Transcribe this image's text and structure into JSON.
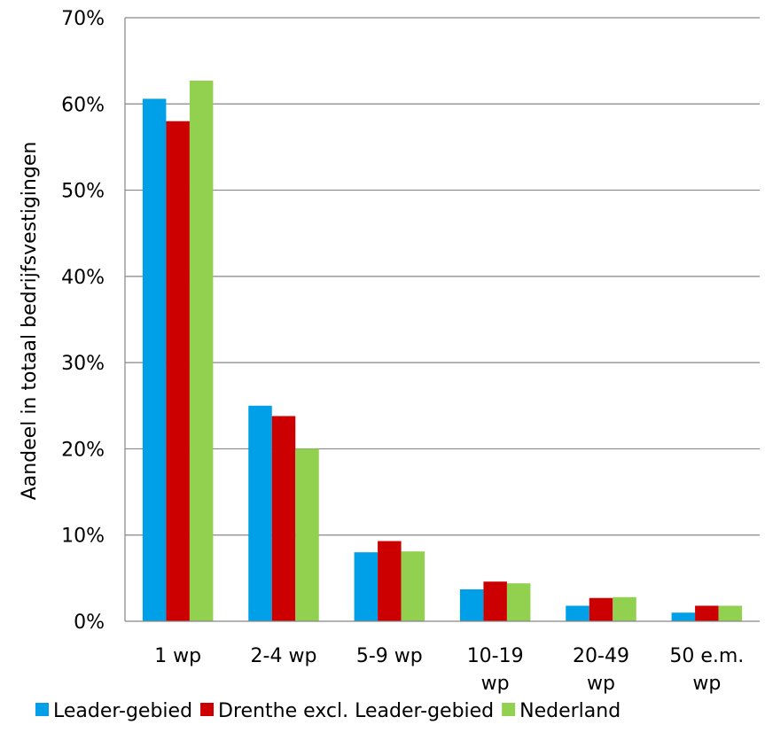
{
  "chart_data": {
    "type": "bar",
    "title": "",
    "xlabel": "",
    "ylabel": "Aandeel in totaal bedrijfsvestigingen",
    "ylim": [
      0,
      70
    ],
    "y_ticks": [
      "0%",
      "10%",
      "20%",
      "30%",
      "40%",
      "50%",
      "60%",
      "70%"
    ],
    "categories": [
      [
        "1 wp"
      ],
      [
        "2-4 wp"
      ],
      [
        "5-9 wp"
      ],
      [
        "10-19",
        "wp"
      ],
      [
        "20-49",
        "wp"
      ],
      [
        "50 e.m.",
        "wp"
      ]
    ],
    "series": [
      {
        "name": "Leader-gebied",
        "color": "#00A0E8",
        "values": [
          60.6,
          25.0,
          8.0,
          3.7,
          1.8,
          1.0
        ]
      },
      {
        "name": "Drenthe excl. Leader-gebied",
        "color": "#CC0000",
        "values": [
          58.0,
          23.8,
          9.3,
          4.6,
          2.7,
          1.8
        ]
      },
      {
        "name": "Nederland",
        "color": "#92D050",
        "values": [
          62.7,
          20.0,
          8.1,
          4.4,
          2.8,
          1.8
        ]
      }
    ],
    "grid": true,
    "legend_position": "bottom"
  }
}
